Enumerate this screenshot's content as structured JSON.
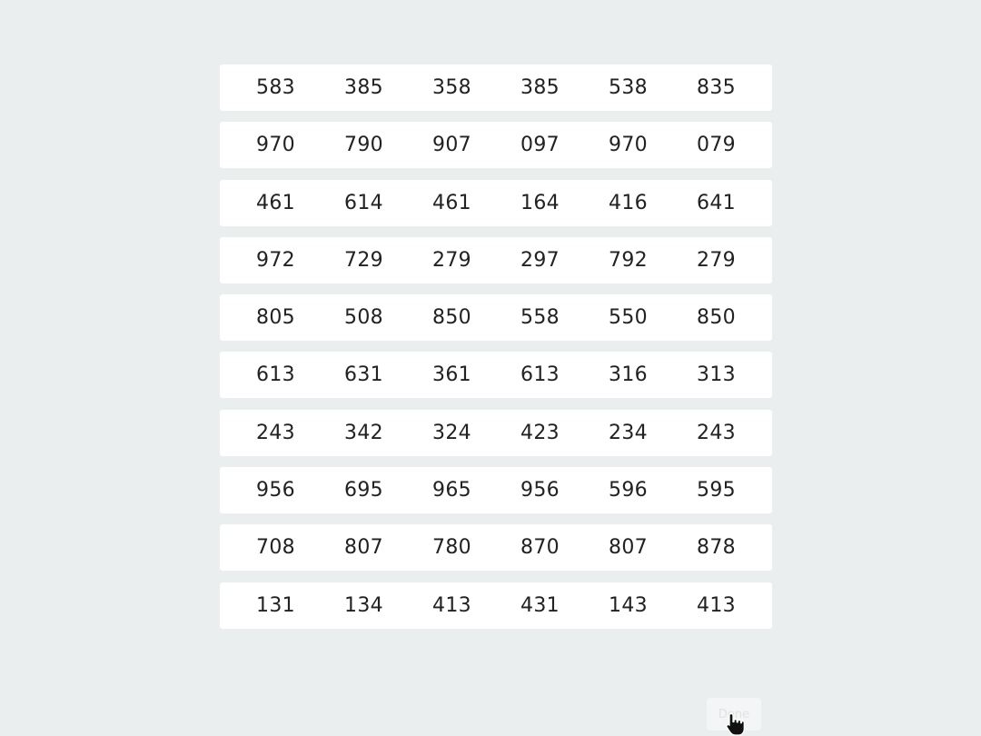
{
  "rows": [
    [
      "583",
      "385",
      "358",
      "385",
      "538",
      "835"
    ],
    [
      "970",
      "790",
      "907",
      "097",
      "970",
      "079"
    ],
    [
      "461",
      "614",
      "461",
      "164",
      "416",
      "641"
    ],
    [
      "972",
      "729",
      "279",
      "297",
      "792",
      "279"
    ],
    [
      "805",
      "508",
      "850",
      "558",
      "550",
      "850"
    ],
    [
      "613",
      "631",
      "361",
      "613",
      "316",
      "313"
    ],
    [
      "243",
      "342",
      "324",
      "423",
      "234",
      "243"
    ],
    [
      "956",
      "695",
      "965",
      "956",
      "596",
      "595"
    ],
    [
      "708",
      "807",
      "780",
      "870",
      "807",
      "878"
    ],
    [
      "131",
      "134",
      "413",
      "431",
      "143",
      "413"
    ]
  ],
  "done_button": {
    "label": "Done"
  },
  "colors": {
    "background": "#ebeeef",
    "row_background": "#ffffff",
    "text": "#222222"
  },
  "icons": {
    "cursor": "hand-pointer-icon"
  }
}
